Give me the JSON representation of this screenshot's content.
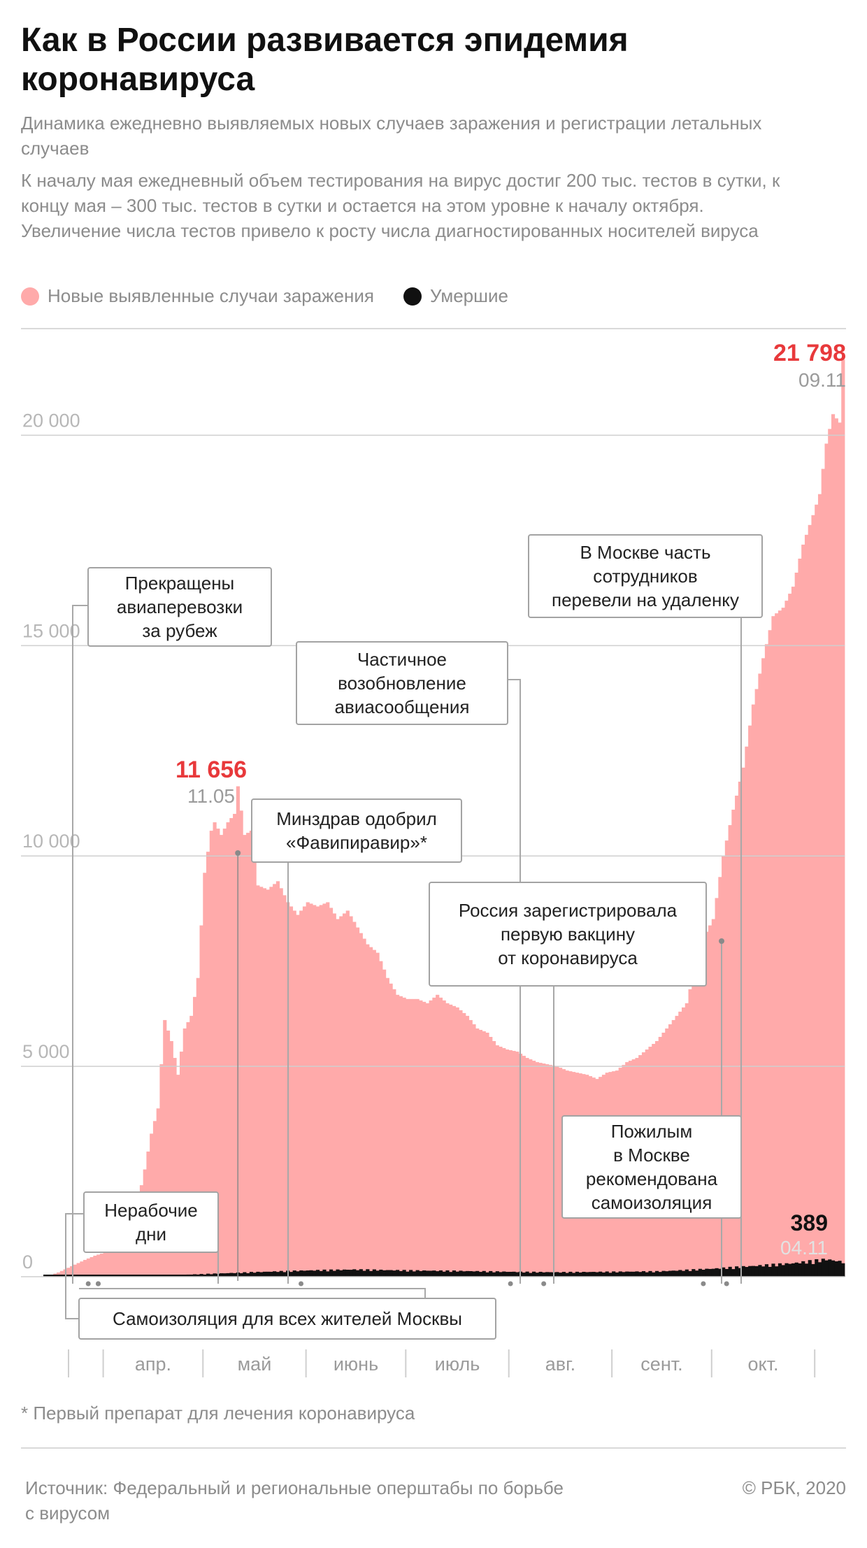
{
  "title": "Как в России развивается эпидемия коронавируса",
  "subtitle": "Динамика ежедневно выявляемых новых случаев заражения и регистрации летальных случаев",
  "note": "К началу мая ежедневный объем тестирования на вирус достиг 200 тыс. тестов в сутки, к концу мая – 300 тыс. тестов в сутки и остается на этом уровне к началу октября. Увеличение числа тестов привело к росту числа диагностированных носителей вируса",
  "legend": [
    {
      "label": "Новые выявленные случаи заражения",
      "color": "#ffaaaa"
    },
    {
      "label": "Умершие",
      "color": "#111111"
    }
  ],
  "footnote": "* Первый препарат для лечения коронавируса",
  "source": "Источник: Федеральный и региональные оперштабы по борьбе с вирусом",
  "copyright": "© РБК, 2020",
  "chart_data": {
    "type": "bar",
    "x_range": [
      "2020-03-14",
      "2020-11-09"
    ],
    "month_labels": [
      "апр.",
      "май",
      "июнь",
      "июль",
      "авг.",
      "сент.",
      "окт."
    ],
    "y_ticks": [
      "0",
      "5 000",
      "10 000",
      "15 000",
      "20 000"
    ],
    "ylim": [
      0,
      22500
    ],
    "grid": true,
    "colors": {
      "cases": "#ffaaaa",
      "deaths": "#111111",
      "highlight": "#e8393b",
      "date": "#9b9b9b"
    },
    "cases_anchors": [
      [
        "2020-03-14",
        0
      ],
      [
        "2020-03-18",
        100
      ],
      [
        "2020-03-22",
        250
      ],
      [
        "2020-03-26",
        400
      ],
      [
        "2020-03-29",
        500
      ],
      [
        "2020-03-31",
        550
      ],
      [
        "2020-04-01",
        770
      ],
      [
        "2020-04-03",
        1100
      ],
      [
        "2020-04-05",
        1400
      ],
      [
        "2020-04-07",
        1250
      ],
      [
        "2020-04-09",
        1750
      ],
      [
        "2020-04-11",
        1800
      ],
      [
        "2020-04-13",
        2550
      ],
      [
        "2020-04-15",
        3400
      ],
      [
        "2020-04-17",
        4000
      ],
      [
        "2020-04-19",
        6100
      ],
      [
        "2020-04-21",
        5600
      ],
      [
        "2020-04-23",
        4800
      ],
      [
        "2020-04-25",
        5900
      ],
      [
        "2020-04-27",
        6200
      ],
      [
        "2020-04-29",
        7100
      ],
      [
        "2020-05-01",
        9600
      ],
      [
        "2020-05-03",
        10600
      ],
      [
        "2020-05-04",
        10800
      ],
      [
        "2020-05-06",
        10500
      ],
      [
        "2020-05-08",
        10800
      ],
      [
        "2020-05-10",
        11000
      ],
      [
        "2020-05-11",
        11656
      ],
      [
        "2020-05-13",
        10500
      ],
      [
        "2020-05-15",
        10600
      ],
      [
        "2020-05-17",
        9300
      ],
      [
        "2020-05-20",
        9200
      ],
      [
        "2020-05-23",
        9400
      ],
      [
        "2020-05-26",
        8900
      ],
      [
        "2020-05-29",
        8600
      ],
      [
        "2020-06-01",
        8900
      ],
      [
        "2020-06-04",
        8800
      ],
      [
        "2020-06-07",
        8900
      ],
      [
        "2020-06-10",
        8500
      ],
      [
        "2020-06-13",
        8700
      ],
      [
        "2020-06-16",
        8300
      ],
      [
        "2020-06-19",
        7900
      ],
      [
        "2020-06-22",
        7700
      ],
      [
        "2020-06-25",
        7100
      ],
      [
        "2020-06-28",
        6700
      ],
      [
        "2020-07-01",
        6600
      ],
      [
        "2020-07-04",
        6600
      ],
      [
        "2020-07-07",
        6500
      ],
      [
        "2020-07-10",
        6700
      ],
      [
        "2020-07-13",
        6500
      ],
      [
        "2020-07-16",
        6400
      ],
      [
        "2020-07-19",
        6200
      ],
      [
        "2020-07-22",
        5900
      ],
      [
        "2020-07-25",
        5800
      ],
      [
        "2020-07-28",
        5500
      ],
      [
        "2020-07-31",
        5400
      ],
      [
        "2020-08-03",
        5350
      ],
      [
        "2020-08-06",
        5200
      ],
      [
        "2020-08-09",
        5100
      ],
      [
        "2020-08-12",
        5050
      ],
      [
        "2020-08-15",
        5000
      ],
      [
        "2020-08-18",
        4900
      ],
      [
        "2020-08-21",
        4850
      ],
      [
        "2020-08-24",
        4800
      ],
      [
        "2020-08-27",
        4700
      ],
      [
        "2020-08-30",
        4850
      ],
      [
        "2020-09-02",
        4900
      ],
      [
        "2020-09-05",
        5100
      ],
      [
        "2020-09-08",
        5200
      ],
      [
        "2020-09-11",
        5400
      ],
      [
        "2020-09-14",
        5600
      ],
      [
        "2020-09-17",
        5900
      ],
      [
        "2020-09-20",
        6200
      ],
      [
        "2020-09-23",
        6500
      ],
      [
        "2020-09-26",
        7500
      ],
      [
        "2020-09-29",
        8200
      ],
      [
        "2020-10-01",
        8500
      ],
      [
        "2020-10-04",
        10000
      ],
      [
        "2020-10-07",
        11100
      ],
      [
        "2020-10-10",
        12100
      ],
      [
        "2020-10-13",
        13600
      ],
      [
        "2020-10-16",
        14700
      ],
      [
        "2020-10-19",
        15700
      ],
      [
        "2020-10-22",
        15900
      ],
      [
        "2020-10-25",
        16400
      ],
      [
        "2020-10-28",
        17400
      ],
      [
        "2020-10-31",
        18100
      ],
      [
        "2020-11-02",
        18600
      ],
      [
        "2020-11-04",
        19800
      ],
      [
        "2020-11-06",
        20500
      ],
      [
        "2020-11-08",
        20300
      ],
      [
        "2020-11-09",
        21798
      ]
    ],
    "deaths_anchors": [
      [
        "2020-03-14",
        0
      ],
      [
        "2020-04-01",
        5
      ],
      [
        "2020-04-15",
        20
      ],
      [
        "2020-05-01",
        60
      ],
      [
        "2020-05-15",
        100
      ],
      [
        "2020-06-01",
        140
      ],
      [
        "2020-06-15",
        160
      ],
      [
        "2020-07-01",
        140
      ],
      [
        "2020-07-15",
        130
      ],
      [
        "2020-08-01",
        110
      ],
      [
        "2020-08-15",
        100
      ],
      [
        "2020-09-01",
        110
      ],
      [
        "2020-09-15",
        120
      ],
      [
        "2020-10-01",
        180
      ],
      [
        "2020-10-15",
        250
      ],
      [
        "2020-10-25",
        300
      ],
      [
        "2020-11-04",
        389
      ],
      [
        "2020-11-09",
        330
      ]
    ],
    "highlights": [
      {
        "value": "11 656",
        "date": "11.05",
        "point": [
          "2020-05-11",
          11656
        ]
      },
      {
        "value": "21 798",
        "date": "09.11",
        "point": [
          "2020-11-09",
          21798
        ]
      },
      {
        "value": "389",
        "date": "04.11",
        "point": [
          "2020-11-04",
          389
        ]
      }
    ],
    "events": [
      {
        "lines": [
          "Прекращены",
          "авиаперевозки",
          "за рубеж"
        ],
        "date": "2020-03-27"
      },
      {
        "lines": [
          "Нерабочие",
          "дни"
        ],
        "date": "2020-03-30"
      },
      {
        "lines": [
          "Самоизоляция для всех жителей Москвы"
        ],
        "date": "2020-03-30"
      },
      {
        "lines": [
          "Минздрав одобрил",
          "«Фавипиравир»*"
        ],
        "date": "2020-05-30"
      },
      {
        "lines": [
          "Частичное",
          "возобновление",
          "авиасообщения"
        ],
        "date": "2020-08-01"
      },
      {
        "lines": [
          "Россия зарегистрировала",
          "первую вакцину",
          "от коронавируса"
        ],
        "date": "2020-08-11"
      },
      {
        "lines": [
          "Пожилым",
          "в Москве",
          "рекомендована",
          "самоизоляция"
        ],
        "date": "2020-09-28"
      },
      {
        "lines": [
          "В Москве часть",
          "сотрудников",
          "перевели на удаленку"
        ],
        "date": "2020-10-05"
      }
    ]
  }
}
